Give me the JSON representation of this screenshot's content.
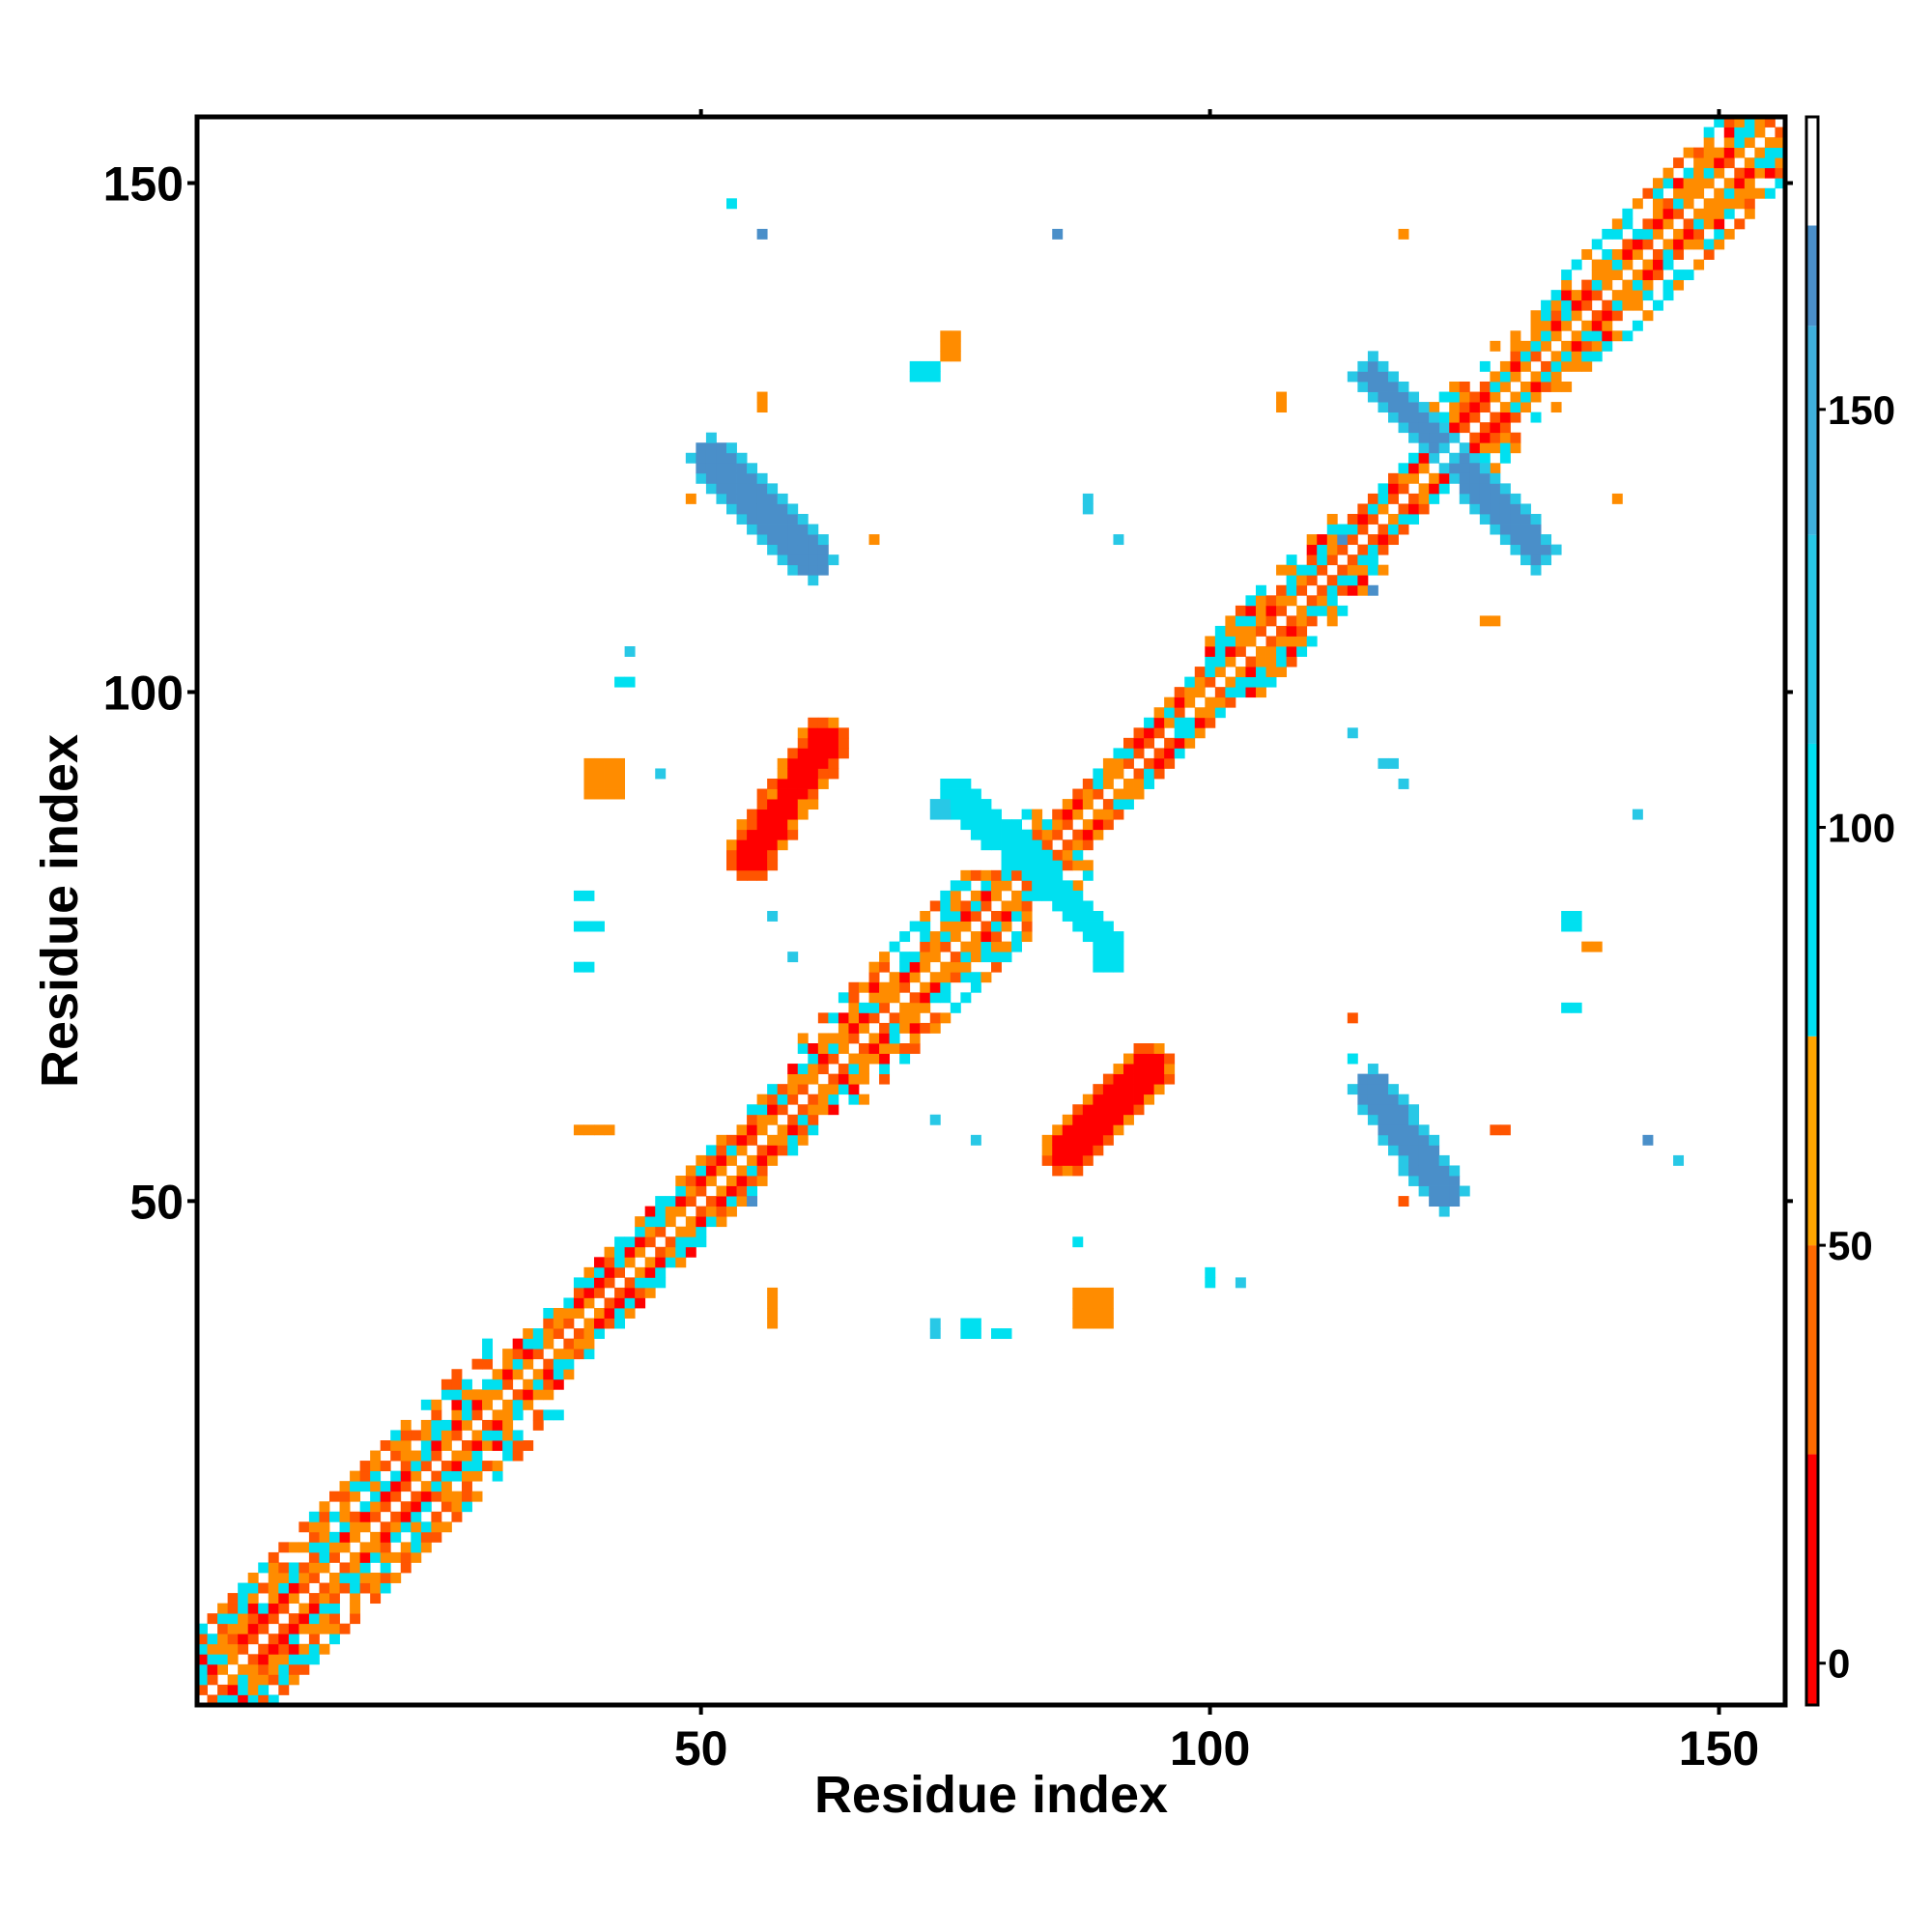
{
  "chart_data": {
    "type": "heatmap",
    "xlabel": "Residue index",
    "ylabel": "Residue index",
    "xlim": [
      1,
      156
    ],
    "ylim": [
      1,
      156
    ],
    "x_ticks": [
      50,
      100,
      150
    ],
    "y_ticks": [
      50,
      100,
      150
    ],
    "colorbar": {
      "range": [
        -5,
        185
      ],
      "ticks": [
        0,
        50,
        100,
        150
      ],
      "bands": [
        {
          "from": -5,
          "to": 25,
          "color": "#ff0000"
        },
        {
          "from": 25,
          "to": 50,
          "color": "#ff6a00"
        },
        {
          "from": 50,
          "to": 75,
          "color": "#ffa500"
        },
        {
          "from": 75,
          "to": 110,
          "color": "#00e0f0"
        },
        {
          "from": 110,
          "to": 135,
          "color": "#28c8e6"
        },
        {
          "from": 135,
          "to": 160,
          "color": "#3fb0dc"
        },
        {
          "from": 160,
          "to": 172,
          "color": "#4a8fc9"
        },
        {
          "from": 172,
          "to": 185,
          "color": "#ffffff"
        }
      ]
    },
    "cell_classes": {
      "r": "#ff0000",
      "ro": "#ff5500",
      "o": "#ff8c00",
      "c": "#00e0f0",
      "lc": "#28c8e6",
      "b": "#4a8fc9"
    },
    "diagonal_band": [
      {
        "from": 1,
        "to": 30,
        "halfwidth": 7
      },
      {
        "from": 30,
        "to": 60,
        "halfwidth": 4
      },
      {
        "from": 60,
        "to": 83,
        "halfwidth": 6
      },
      {
        "from": 83,
        "to": 100,
        "halfwidth": 3
      },
      {
        "from": 100,
        "to": 112,
        "halfwidth": 5
      },
      {
        "from": 112,
        "to": 122,
        "halfwidth": 3
      },
      {
        "from": 122,
        "to": 156,
        "halfwidth": 6
      }
    ],
    "strands": [
      {
        "x1": 55,
        "y1": 84,
        "x2": 62,
        "y2": 95,
        "width": 2.5,
        "class": "r"
      },
      {
        "x1": 86,
        "y1": 55,
        "x2": 94,
        "y2": 63,
        "width": 2.5,
        "class": "r"
      },
      {
        "x1": 51,
        "y1": 123,
        "x2": 61,
        "y2": 113,
        "width": 2.2,
        "class": "b"
      },
      {
        "x1": 116,
        "y1": 61,
        "x2": 123,
        "y2": 51,
        "width": 2.2,
        "class": "b"
      },
      {
        "x1": 116,
        "y1": 131,
        "x2": 122,
        "y2": 125,
        "width": 2.0,
        "class": "b"
      },
      {
        "x1": 125,
        "y1": 122,
        "x2": 132,
        "y2": 114,
        "width": 2.0,
        "class": "b"
      },
      {
        "x1": 75,
        "y1": 90,
        "x2": 84,
        "y2": 82,
        "width": 1.8,
        "class": "c"
      },
      {
        "x1": 84,
        "y1": 82,
        "x2": 90,
        "y2": 75,
        "width": 1.5,
        "class": "c"
      }
    ],
    "clusters": [
      {
        "x": 39,
        "y": 90,
        "w": 4,
        "h": 4,
        "class": "o"
      },
      {
        "x": 87,
        "y": 38,
        "w": 4,
        "h": 4,
        "class": "o"
      },
      {
        "x": 38,
        "y": 80,
        "w": 2,
        "h": 1,
        "class": "c"
      },
      {
        "x": 38,
        "y": 77,
        "w": 3,
        "h": 1,
        "class": "c"
      },
      {
        "x": 38,
        "y": 73,
        "w": 2,
        "h": 1,
        "class": "c"
      },
      {
        "x": 38,
        "y": 57,
        "w": 4,
        "h": 1,
        "class": "o"
      },
      {
        "x": 57,
        "y": 38,
        "w": 1,
        "h": 4,
        "class": "o"
      },
      {
        "x": 73,
        "y": 37,
        "w": 1,
        "h": 2,
        "class": "lc"
      },
      {
        "x": 76,
        "y": 37,
        "w": 2,
        "h": 2,
        "class": "c"
      },
      {
        "x": 79,
        "y": 37,
        "w": 2,
        "h": 1,
        "class": "c"
      },
      {
        "x": 73,
        "y": 88,
        "w": 2,
        "h": 2,
        "class": "lc"
      },
      {
        "x": 89,
        "y": 73,
        "w": 3,
        "h": 2,
        "class": "c"
      },
      {
        "x": 71,
        "y": 131,
        "w": 3,
        "h": 2,
        "class": "c"
      },
      {
        "x": 74,
        "y": 133,
        "w": 2,
        "h": 3,
        "class": "o"
      },
      {
        "x": 67,
        "y": 115,
        "w": 1,
        "h": 1,
        "class": "o"
      },
      {
        "x": 49,
        "y": 119,
        "w": 1,
        "h": 1,
        "class": "o"
      },
      {
        "x": 56,
        "y": 128,
        "w": 1,
        "h": 2,
        "class": "o"
      },
      {
        "x": 53,
        "y": 148,
        "w": 1,
        "h": 1,
        "class": "c"
      },
      {
        "x": 56,
        "y": 145,
        "w": 1,
        "h": 1,
        "class": "b"
      },
      {
        "x": 85,
        "y": 145,
        "w": 1,
        "h": 1,
        "class": "b"
      },
      {
        "x": 119,
        "y": 145,
        "w": 1,
        "h": 1,
        "class": "o"
      },
      {
        "x": 107,
        "y": 128,
        "w": 1,
        "h": 2,
        "class": "o"
      },
      {
        "x": 127,
        "y": 107,
        "w": 2,
        "h": 1,
        "class": "o"
      },
      {
        "x": 140,
        "y": 119,
        "w": 1,
        "h": 1,
        "class": "o"
      },
      {
        "x": 43,
        "y": 104,
        "w": 1,
        "h": 1,
        "class": "lc"
      },
      {
        "x": 42,
        "y": 101,
        "w": 2,
        "h": 1,
        "class": "c"
      },
      {
        "x": 88,
        "y": 118,
        "w": 1,
        "h": 2,
        "class": "lc"
      },
      {
        "x": 91,
        "y": 115,
        "w": 1,
        "h": 1,
        "class": "lc"
      },
      {
        "x": 113,
        "y": 115,
        "w": 1,
        "h": 1,
        "class": "b"
      },
      {
        "x": 116,
        "y": 110,
        "w": 1,
        "h": 1,
        "class": "b"
      },
      {
        "x": 97,
        "y": 96,
        "w": 2,
        "h": 2,
        "class": "c"
      },
      {
        "x": 114,
        "y": 96,
        "w": 1,
        "h": 1,
        "class": "lc"
      },
      {
        "x": 117,
        "y": 93,
        "w": 2,
        "h": 1,
        "class": "lc"
      },
      {
        "x": 119,
        "y": 91,
        "w": 1,
        "h": 1,
        "class": "lc"
      },
      {
        "x": 142,
        "y": 88,
        "w": 1,
        "h": 1,
        "class": "lc"
      },
      {
        "x": 135,
        "y": 77,
        "w": 2,
        "h": 2,
        "class": "c"
      },
      {
        "x": 137,
        "y": 75,
        "w": 2,
        "h": 1,
        "class": "o"
      },
      {
        "x": 135,
        "y": 69,
        "w": 2,
        "h": 1,
        "class": "c"
      },
      {
        "x": 114,
        "y": 68,
        "w": 1,
        "h": 1,
        "class": "ro"
      },
      {
        "x": 114,
        "y": 64,
        "w": 1,
        "h": 1,
        "class": "c"
      },
      {
        "x": 128,
        "y": 57,
        "w": 2,
        "h": 1,
        "class": "ro"
      },
      {
        "x": 143,
        "y": 56,
        "w": 1,
        "h": 1,
        "class": "b"
      },
      {
        "x": 146,
        "y": 54,
        "w": 1,
        "h": 1,
        "class": "lc"
      },
      {
        "x": 119,
        "y": 50,
        "w": 1,
        "h": 1,
        "class": "ro"
      },
      {
        "x": 55,
        "y": 50,
        "w": 1,
        "h": 1,
        "class": "b"
      },
      {
        "x": 73,
        "y": 58,
        "w": 1,
        "h": 1,
        "class": "lc"
      },
      {
        "x": 77,
        "y": 56,
        "w": 1,
        "h": 1,
        "class": "lc"
      },
      {
        "x": 87,
        "y": 46,
        "w": 1,
        "h": 1,
        "class": "c"
      },
      {
        "x": 100,
        "y": 42,
        "w": 1,
        "h": 2,
        "class": "c"
      },
      {
        "x": 103,
        "y": 42,
        "w": 1,
        "h": 1,
        "class": "lc"
      },
      {
        "x": 57,
        "y": 78,
        "w": 1,
        "h": 1,
        "class": "lc"
      },
      {
        "x": 59,
        "y": 74,
        "w": 1,
        "h": 1,
        "class": "lc"
      },
      {
        "x": 46,
        "y": 92,
        "w": 1,
        "h": 1,
        "class": "lc"
      }
    ]
  }
}
